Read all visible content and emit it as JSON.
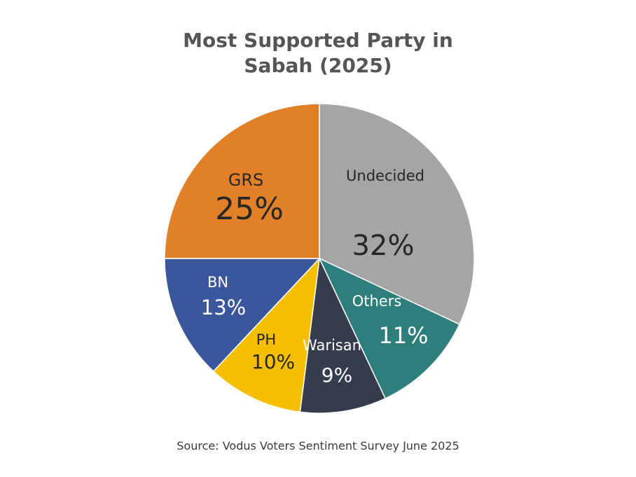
{
  "chart_data": {
    "type": "pie",
    "title_line1": "Most Supported Party in",
    "title_line2": "Sabah (2025)",
    "slices": [
      {
        "label": "Undecided",
        "value": 32,
        "value_text": "32%",
        "color": "#A5A5A5",
        "text_color": "#262626"
      },
      {
        "label": "Others",
        "value": 11,
        "value_text": "11%",
        "color": "#2E7F7C",
        "text_color": "#FFFFFF"
      },
      {
        "label": "Warisan",
        "value": 9,
        "value_text": "9%",
        "color": "#353C4E",
        "text_color": "#FFFFFF"
      },
      {
        "label": "PH",
        "value": 10,
        "value_text": "10%",
        "color": "#F5BF00",
        "text_color": "#262626"
      },
      {
        "label": "BN",
        "value": 13,
        "value_text": "13%",
        "color": "#3B579C",
        "text_color": "#FFFFFF"
      },
      {
        "label": "GRS",
        "value": 25,
        "value_text": "25%",
        "color": "#E2802A",
        "text_color": "#262626"
      }
    ],
    "source": "Source: Vodus Voters Sentiment Survey June 2025"
  }
}
